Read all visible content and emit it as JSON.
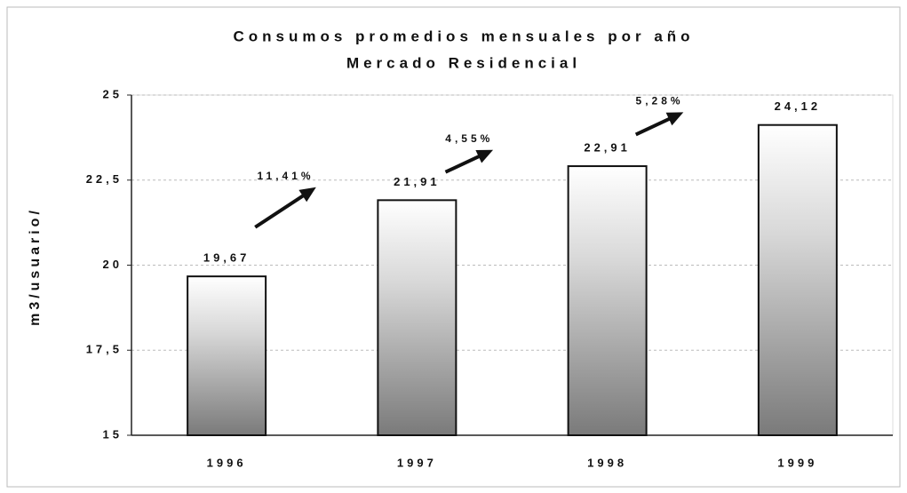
{
  "chart_data": {
    "type": "bar",
    "title": "Consumos promedios mensuales por año",
    "subtitle": "Mercado Residencial",
    "ylabel": "m3/usuario/",
    "categories": [
      "1996",
      "1997",
      "1998",
      "1999"
    ],
    "values": [
      19.67,
      21.91,
      22.91,
      24.12
    ],
    "value_labels": [
      "19,67",
      "21,91",
      "22,91",
      "24,12"
    ],
    "annotations": [
      "11,41%",
      "4,55%",
      "5,28%"
    ],
    "color": "#7a7a7a",
    "ylim": [
      15,
      25
    ],
    "yticks": [
      {
        "value": 15,
        "label": "15"
      },
      {
        "value": 17.5,
        "label": "17,5"
      },
      {
        "value": 20,
        "label": "20"
      },
      {
        "value": 22.5,
        "label": "22,5"
      },
      {
        "value": 25,
        "label": "25"
      }
    ],
    "grid": true
  }
}
